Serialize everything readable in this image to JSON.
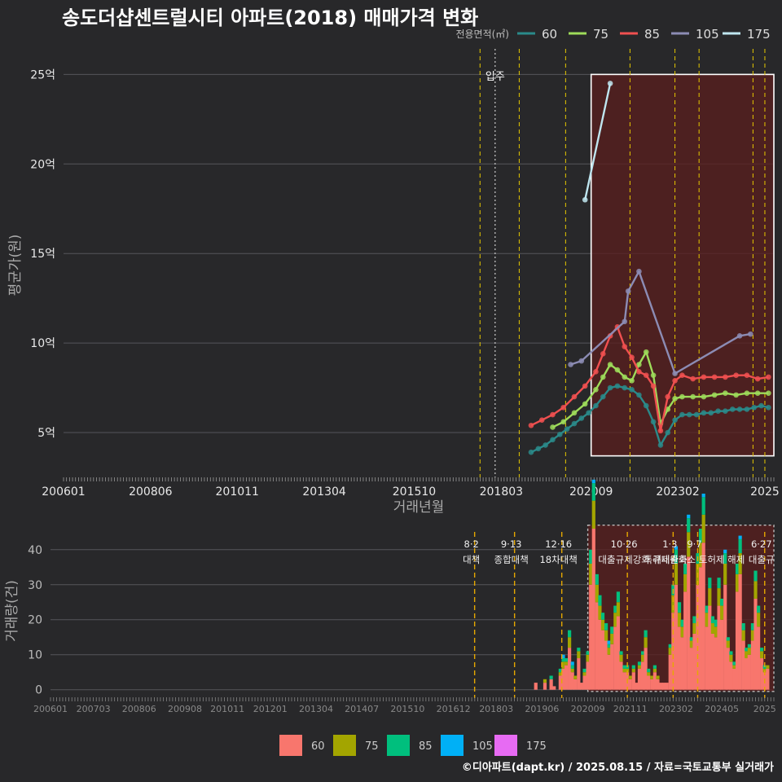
{
  "page": {
    "title": "송도더샵센트럴시티 아파트(2018) 매매가격 변화",
    "footer": "©디아파트(dapt.kr) / 2025.08.15 / 자료=국토교통부 실거래가"
  },
  "colors": {
    "background": "#28282a",
    "grid": "#55555a",
    "highlight_fill": "#5a1e1e",
    "line60": "#2a8a8a",
    "line75": "#9edc5a",
    "line85": "#f05050",
    "line105": "#8c8cb4",
    "line175": "#bfe6f0",
    "bar60": "#f8766d",
    "bar75": "#a3a500",
    "bar85": "#00bf7d",
    "bar105": "#00b0f6",
    "bar175": "#e76bf3",
    "policy_line": "#e6c800"
  },
  "chart_data": [
    {
      "type": "line",
      "title": "송도더샵센트럴시티 아파트(2018) 매매가격 변화",
      "xlabel": "거래년월",
      "ylabel": "평균가(원)",
      "xlim": [
        2006.0,
        2025.75
      ],
      "ylim": [
        2.5,
        26.2
      ],
      "y_unit": "억",
      "legend_title": "전용면적(㎡)",
      "legend_position": "top-right",
      "x_ticks": [
        2006.0,
        2008.42,
        2010.83,
        2013.25,
        2015.75,
        2018.17,
        2020.67,
        2023.08,
        2025.5
      ],
      "x_tick_labels": [
        "200601",
        "200806",
        "201011",
        "201304",
        "201510",
        "201803",
        "202009",
        "202302",
        "2025"
      ],
      "y_ticks": [
        5,
        10,
        15,
        20,
        25
      ],
      "y_tick_labels": [
        "5억",
        "10억",
        "15억",
        "20억",
        "25억"
      ],
      "move_in": {
        "x": 2018.0,
        "label": "입주"
      },
      "policy_lines": [
        2017.58,
        2018.67,
        2019.96,
        2021.75,
        2023.0,
        2023.67,
        2025.17,
        2025.5
      ],
      "highlight": {
        "x0": 2020.67,
        "x1": 2025.75,
        "y0": 3.7,
        "y1": 25.0
      },
      "series": [
        {
          "name": "60",
          "color_key": "line60",
          "x": [
            2019.0,
            2019.2,
            2019.4,
            2019.6,
            2019.8,
            2020.0,
            2020.2,
            2020.4,
            2020.6,
            2020.8,
            2021.0,
            2021.2,
            2021.4,
            2021.6,
            2021.8,
            2022.0,
            2022.2,
            2022.4,
            2022.6,
            2022.8,
            2023.0,
            2023.2,
            2023.4,
            2023.6,
            2023.8,
            2024.0,
            2024.2,
            2024.4,
            2024.6,
            2024.8,
            2025.0,
            2025.2,
            2025.4,
            2025.6
          ],
          "y": [
            3.9,
            4.1,
            4.3,
            4.6,
            4.9,
            5.2,
            5.5,
            5.8,
            6.1,
            6.5,
            7.0,
            7.5,
            7.6,
            7.5,
            7.4,
            7.1,
            6.5,
            5.6,
            4.3,
            5.0,
            5.7,
            6.0,
            6.0,
            6.0,
            6.1,
            6.1,
            6.2,
            6.2,
            6.3,
            6.3,
            6.3,
            6.4,
            6.5,
            6.4
          ]
        },
        {
          "name": "75",
          "color_key": "line75",
          "x": [
            2019.6,
            2019.9,
            2020.2,
            2020.5,
            2020.8,
            2021.0,
            2021.2,
            2021.4,
            2021.6,
            2021.8,
            2022.0,
            2022.2,
            2022.4,
            2022.6,
            2022.8,
            2023.0,
            2023.2,
            2023.5,
            2023.8,
            2024.1,
            2024.4,
            2024.7,
            2025.0,
            2025.3,
            2025.6
          ],
          "y": [
            5.3,
            5.6,
            6.1,
            6.6,
            7.4,
            8.1,
            8.8,
            8.5,
            8.1,
            7.9,
            8.8,
            9.5,
            8.2,
            5.5,
            6.3,
            6.9,
            7.0,
            7.0,
            7.0,
            7.1,
            7.2,
            7.1,
            7.2,
            7.2,
            7.2
          ]
        },
        {
          "name": "85",
          "color_key": "line85",
          "x": [
            2019.0,
            2019.3,
            2019.6,
            2019.9,
            2020.2,
            2020.5,
            2020.8,
            2021.0,
            2021.2,
            2021.4,
            2021.6,
            2021.8,
            2022.0,
            2022.2,
            2022.4,
            2022.6,
            2022.8,
            2023.0,
            2023.2,
            2023.5,
            2023.8,
            2024.1,
            2024.4,
            2024.7,
            2025.0,
            2025.3,
            2025.6
          ],
          "y": [
            5.4,
            5.7,
            6.0,
            6.4,
            7.0,
            7.6,
            8.4,
            9.4,
            10.4,
            10.9,
            9.8,
            9.2,
            8.4,
            8.2,
            7.6,
            5.1,
            7.0,
            7.9,
            8.2,
            8.0,
            8.1,
            8.1,
            8.1,
            8.2,
            8.2,
            8.0,
            8.1
          ]
        },
        {
          "name": "105",
          "color_key": "line105",
          "x": [
            2020.1,
            2020.4,
            2021.6,
            2021.7,
            2022.0,
            2023.0,
            2024.8,
            2025.1
          ],
          "y": [
            8.8,
            9.0,
            11.2,
            12.9,
            14.0,
            8.3,
            10.4,
            10.5
          ]
        },
        {
          "name": "175",
          "color_key": "line175",
          "x": [
            2020.5,
            2021.2
          ],
          "y": [
            18.0,
            24.5
          ]
        }
      ]
    },
    {
      "type": "bar",
      "ylabel": "거래량(건)",
      "xlim": [
        2006.0,
        2025.75
      ],
      "ylim": [
        -1,
        46
      ],
      "y_ticks": [
        0,
        10,
        20,
        30,
        40
      ],
      "x_ticks": [
        2006.0,
        2007.17,
        2008.42,
        2009.67,
        2010.83,
        2012.0,
        2013.25,
        2014.5,
        2015.75,
        2017.0,
        2018.17,
        2019.42,
        2020.67,
        2021.83,
        2023.08,
        2024.33,
        2025.5
      ],
      "x_tick_labels": [
        "200601",
        "200703",
        "200806",
        "200908",
        "201011",
        "201201",
        "201304",
        "201407",
        "201510",
        "201612",
        "201803",
        "201906",
        "202009",
        "202111",
        "202302",
        "202405",
        "2025"
      ],
      "stack_order": [
        "60",
        "75",
        "85",
        "105",
        "175"
      ],
      "legend_position": "bottom",
      "highlight": {
        "x0": 2020.67,
        "x1": 2025.75,
        "y0": -0.5,
        "y1": 47
      },
      "policies": [
        {
          "x": 2017.58,
          "date": "8·2",
          "name": "대책"
        },
        {
          "x": 2018.67,
          "date": "9·13",
          "name": "종합대책"
        },
        {
          "x": 2019.96,
          "date": "12·16",
          "name": "18차대책"
        },
        {
          "x": 2021.75,
          "date": "10·26",
          "name": "대출규제강화"
        },
        {
          "x": 2023.0,
          "date": "1·3",
          "name": "규제완화"
        },
        {
          "x": 2023.67,
          "date": "9·7",
          "name": "특례대출축소 토허제 해제"
        },
        {
          "x": 2025.5,
          "date": "6·27",
          "name": "대출규"
        }
      ],
      "months": [
        2019.25,
        2019.5,
        2019.67,
        2019.75,
        2019.92,
        2020.0,
        2020.08,
        2020.17,
        2020.25,
        2020.33,
        2020.42,
        2020.5,
        2020.58,
        2020.67,
        2020.75,
        2020.83,
        2020.92,
        2021.0,
        2021.08,
        2021.17,
        2021.25,
        2021.33,
        2021.42,
        2021.5,
        2021.58,
        2021.67,
        2021.75,
        2021.83,
        2021.92,
        2022.0,
        2022.08,
        2022.17,
        2022.25,
        2022.33,
        2022.42,
        2022.5,
        2022.58,
        2022.67,
        2022.75,
        2022.83,
        2022.92,
        2023.0,
        2023.08,
        2023.17,
        2023.25,
        2023.33,
        2023.42,
        2023.5,
        2023.58,
        2023.67,
        2023.75,
        2023.83,
        2023.92,
        2024.0,
        2024.08,
        2024.17,
        2024.25,
        2024.33,
        2024.42,
        2024.5,
        2024.58,
        2024.67,
        2024.75,
        2024.83,
        2024.92,
        2025.0,
        2025.08,
        2025.17,
        2025.25,
        2025.33,
        2025.42,
        2025.5,
        2025.58
      ],
      "series": [
        {
          "name": "60",
          "color_key": "bar60",
          "values": [
            2,
            2,
            3,
            1,
            4,
            6,
            7,
            12,
            5,
            3,
            9,
            2,
            4,
            8,
            30,
            46,
            25,
            20,
            17,
            14,
            10,
            13,
            18,
            21,
            8,
            5,
            5,
            3,
            5,
            2,
            6,
            8,
            12,
            4,
            3,
            5,
            3,
            2,
            2,
            2,
            10,
            22,
            30,
            18,
            15,
            28,
            38,
            12,
            16,
            30,
            35,
            42,
            18,
            24,
            16,
            15,
            24,
            20,
            30,
            12,
            8,
            6,
            28,
            33,
            14,
            9,
            10,
            14,
            26,
            18,
            9,
            5,
            6
          ]
        },
        {
          "name": "75",
          "color_key": "bar75",
          "values": [
            0,
            1,
            0,
            0,
            1,
            2,
            1,
            3,
            1,
            1,
            2,
            0,
            1,
            2,
            6,
            8,
            5,
            4,
            3,
            3,
            2,
            3,
            4,
            4,
            2,
            1,
            1,
            1,
            1,
            0,
            1,
            2,
            3,
            1,
            1,
            1,
            1,
            0,
            0,
            0,
            2,
            5,
            6,
            4,
            3,
            5,
            7,
            2,
            3,
            6,
            7,
            8,
            4,
            5,
            3,
            3,
            5,
            4,
            6,
            2,
            2,
            1,
            5,
            6,
            3,
            2,
            2,
            3,
            5,
            4,
            2,
            1,
            1
          ]
        },
        {
          "name": "85",
          "color_key": "bar85",
          "values": [
            0,
            0,
            1,
            0,
            1,
            1,
            1,
            2,
            1,
            0,
            1,
            0,
            1,
            1,
            4,
            5,
            3,
            3,
            2,
            2,
            1,
            2,
            2,
            3,
            1,
            1,
            1,
            0,
            1,
            0,
            1,
            1,
            2,
            1,
            0,
            1,
            0,
            0,
            0,
            0,
            1,
            3,
            4,
            3,
            2,
            3,
            4,
            1,
            2,
            3,
            4,
            5,
            2,
            3,
            2,
            2,
            3,
            2,
            3,
            1,
            1,
            1,
            3,
            4,
            2,
            1,
            1,
            2,
            3,
            2,
            1,
            1,
            0
          ]
        },
        {
          "name": "105",
          "color_key": "bar105",
          "values": [
            0,
            0,
            0,
            0,
            0,
            1,
            0,
            0,
            1,
            0,
            0,
            0,
            0,
            0,
            0,
            1,
            0,
            0,
            0,
            0,
            1,
            0,
            0,
            0,
            0,
            0,
            0,
            0,
            0,
            0,
            0,
            0,
            0,
            0,
            0,
            0,
            0,
            0,
            0,
            0,
            0,
            0,
            1,
            0,
            0,
            0,
            1,
            0,
            0,
            0,
            0,
            1,
            0,
            0,
            0,
            0,
            0,
            0,
            1,
            0,
            0,
            0,
            0,
            1,
            0,
            0,
            0,
            0,
            0,
            0,
            0,
            0,
            0
          ]
        },
        {
          "name": "175",
          "color_key": "bar175",
          "values": [
            0,
            0,
            0,
            0,
            0,
            0,
            0,
            0,
            0,
            0,
            0,
            0,
            0,
            0,
            0,
            0,
            0,
            0,
            0,
            0,
            0,
            0,
            0,
            0,
            0,
            0,
            0,
            0,
            0,
            0,
            0,
            0,
            0,
            0,
            0,
            0,
            0,
            0,
            0,
            0,
            0,
            0,
            0,
            0,
            0,
            0,
            0,
            0,
            0,
            0,
            0,
            0,
            0,
            0,
            0,
            0,
            0,
            0,
            0,
            0,
            0,
            0,
            0,
            0,
            0,
            0,
            0,
            0,
            0,
            0,
            0,
            0,
            0
          ]
        }
      ]
    }
  ]
}
